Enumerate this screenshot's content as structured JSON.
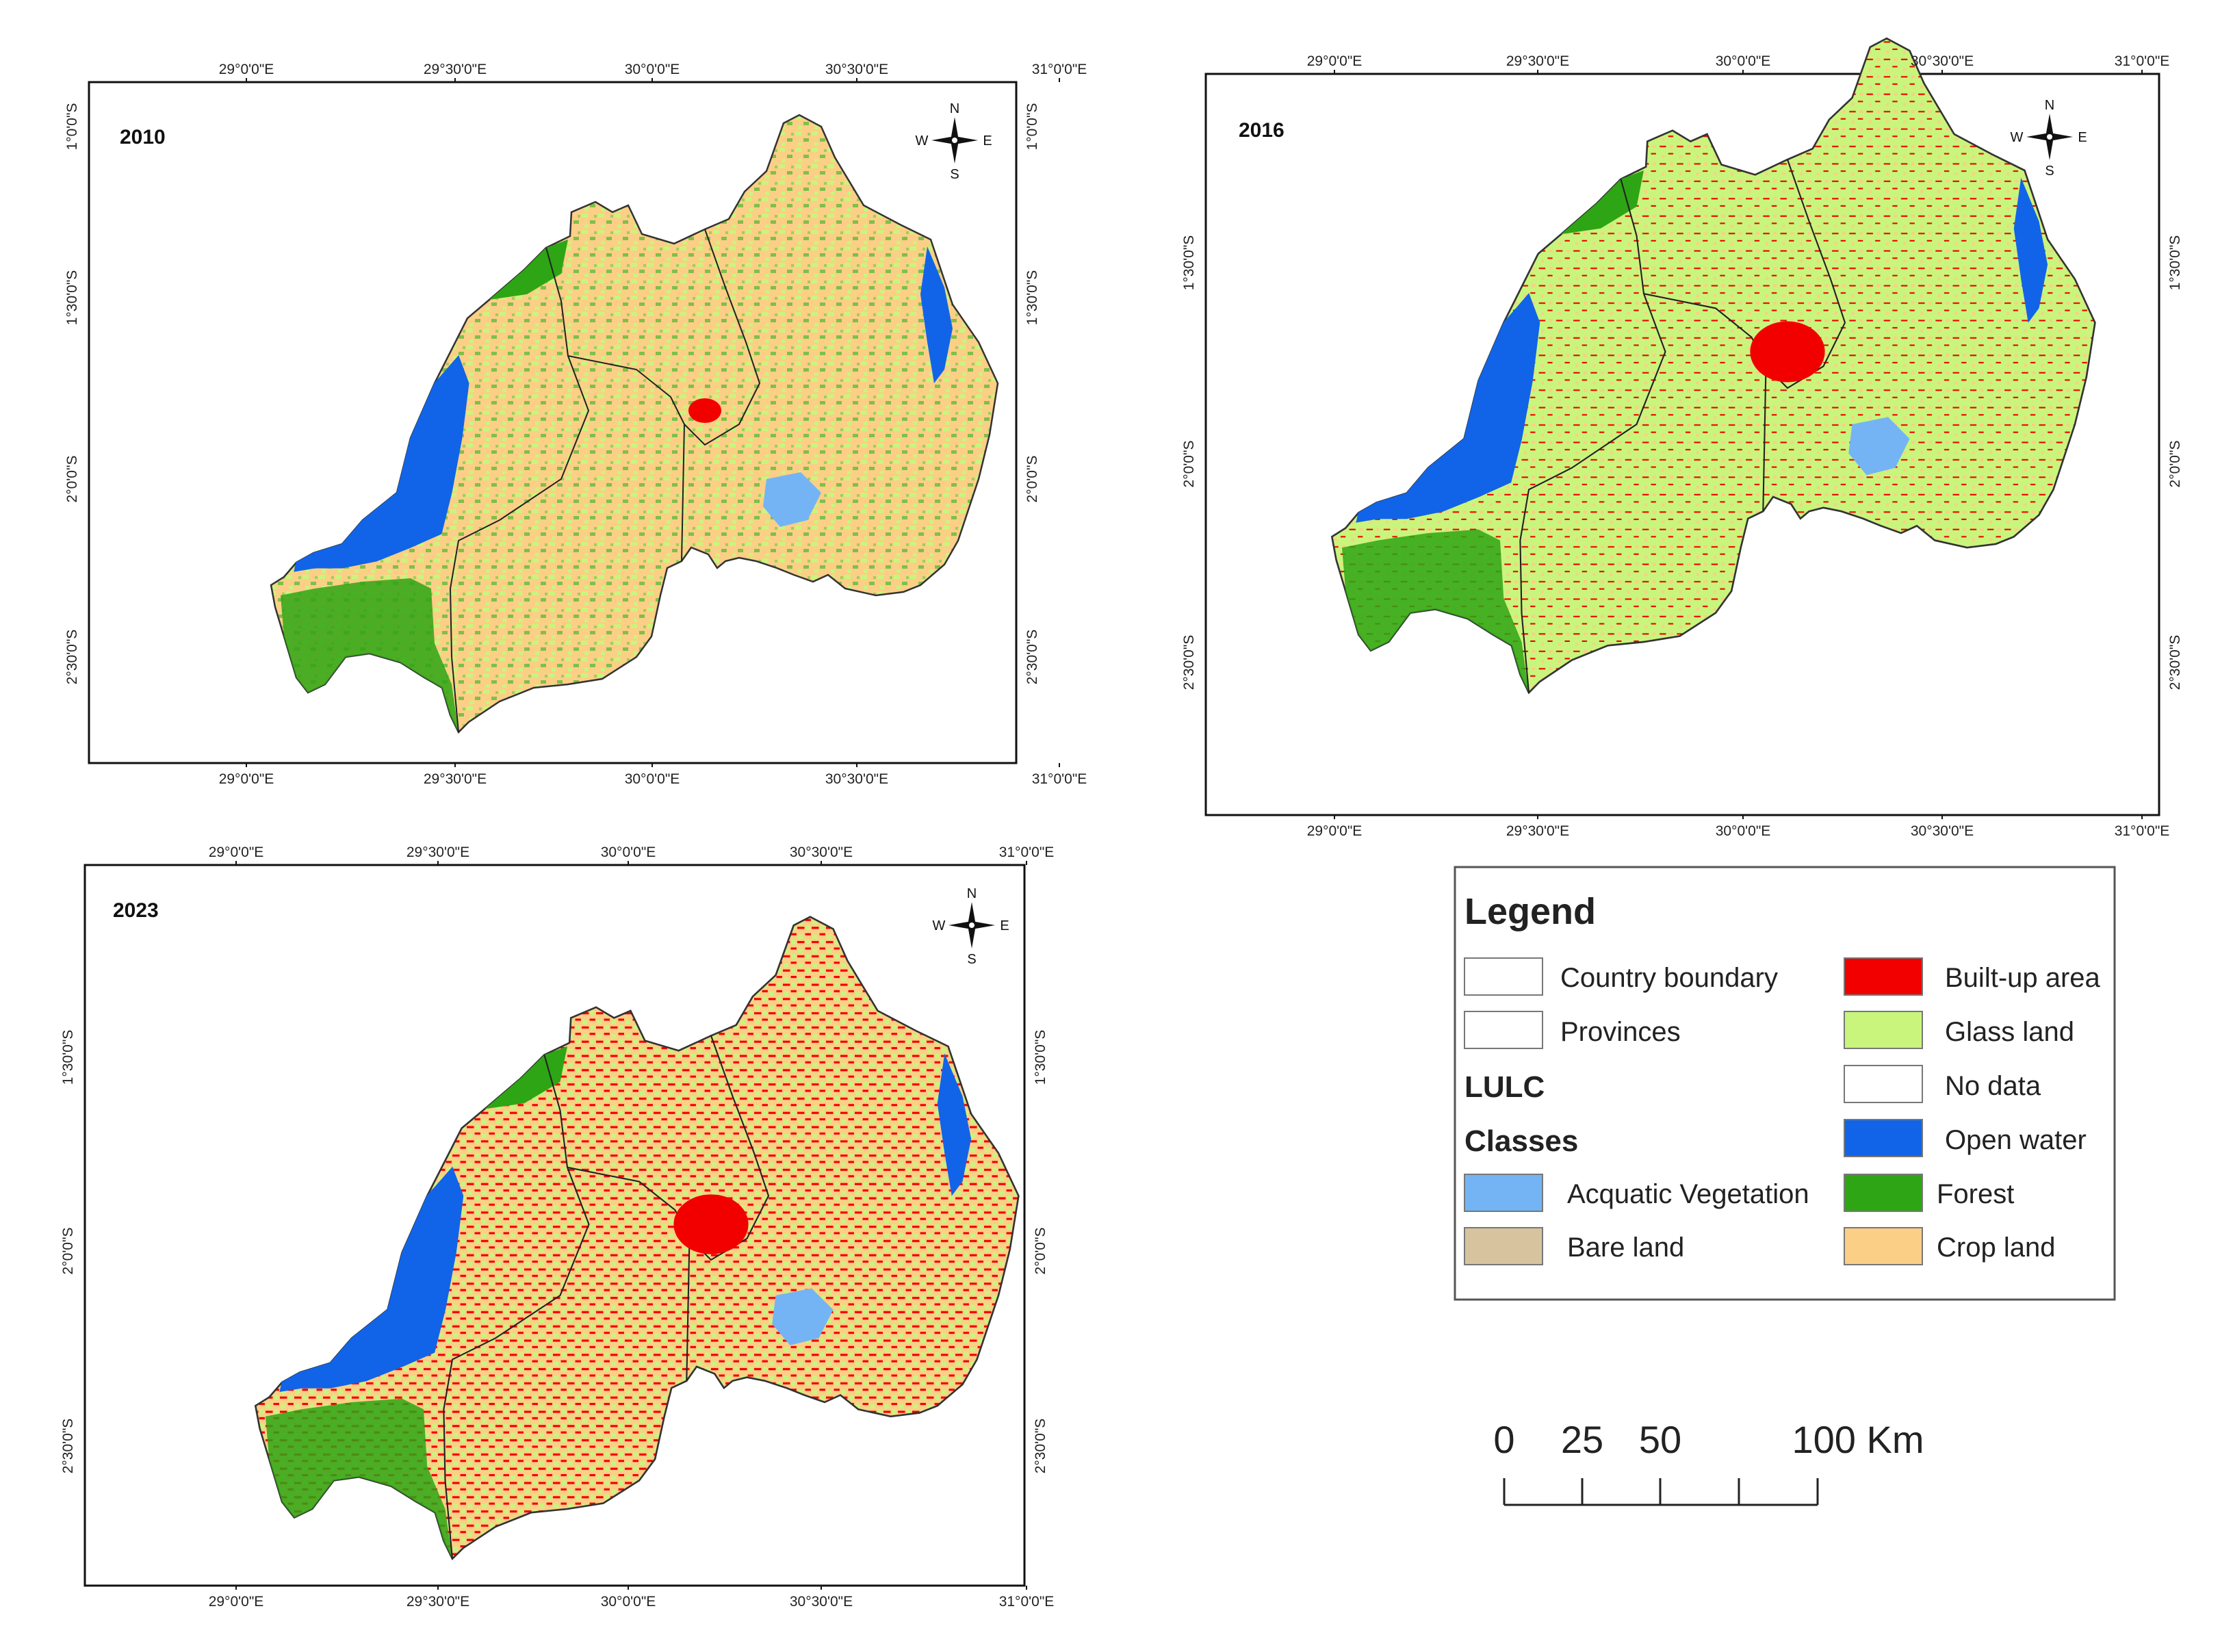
{
  "panels": [
    {
      "year": "2010",
      "x_ticks": [
        "29°0'0\"E",
        "29°30'0\"E",
        "30°0'0\"E",
        "30°30'0\"E",
        "31°0'0\"E"
      ],
      "y_ticks": [
        "1°0'0\"S",
        "1°30'0\"S",
        "2°0'0\"S",
        "2°30'0\"S"
      ]
    },
    {
      "year": "2016",
      "x_ticks": [
        "29°0'0\"E",
        "29°30'0\"E",
        "30°0'0\"E",
        "30°30'0\"E",
        "31°0'0\"E"
      ],
      "y_ticks": [
        "1°30'0\"S",
        "2°0'0\"S",
        "2°30'0\"S"
      ]
    },
    {
      "year": "2023",
      "x_ticks": [
        "29°0'0\"E",
        "29°30'0\"E",
        "30°0'0\"E",
        "30°30'0\"E",
        "31°0'0\"E"
      ],
      "y_ticks": [
        "1°30'0\"S",
        "2°0'0\"S",
        "2°30'0\"S"
      ]
    }
  ],
  "compass": {
    "n": "N",
    "s": "S",
    "e": "E",
    "w": "W"
  },
  "legend": {
    "title": "Legend",
    "lulc_line1": "LULC",
    "lulc_line2": "Classes",
    "items_left": [
      {
        "label": "Country boundary",
        "color": "#ffffff"
      },
      {
        "label": "Provinces",
        "color": "#ffffff"
      },
      {
        "label": "Acquatic Vegetation",
        "color": "#74b4f4"
      },
      {
        "label": "Bare land",
        "color": "#d7c49e"
      }
    ],
    "items_right": [
      {
        "label": "Built-up area",
        "color": "#f20000"
      },
      {
        "label": "Glass land",
        "color": "#c9f57c"
      },
      {
        "label": "No data",
        "color": "#ffffff"
      },
      {
        "label": "Open water",
        "color": "#1164e8"
      },
      {
        "label": "Forest",
        "color": "#2ea514"
      },
      {
        "label": "Crop land",
        "color": "#fbcf86"
      }
    ]
  },
  "scale_bar": {
    "labels": [
      "0",
      "25",
      "50",
      "100 Km"
    ]
  }
}
